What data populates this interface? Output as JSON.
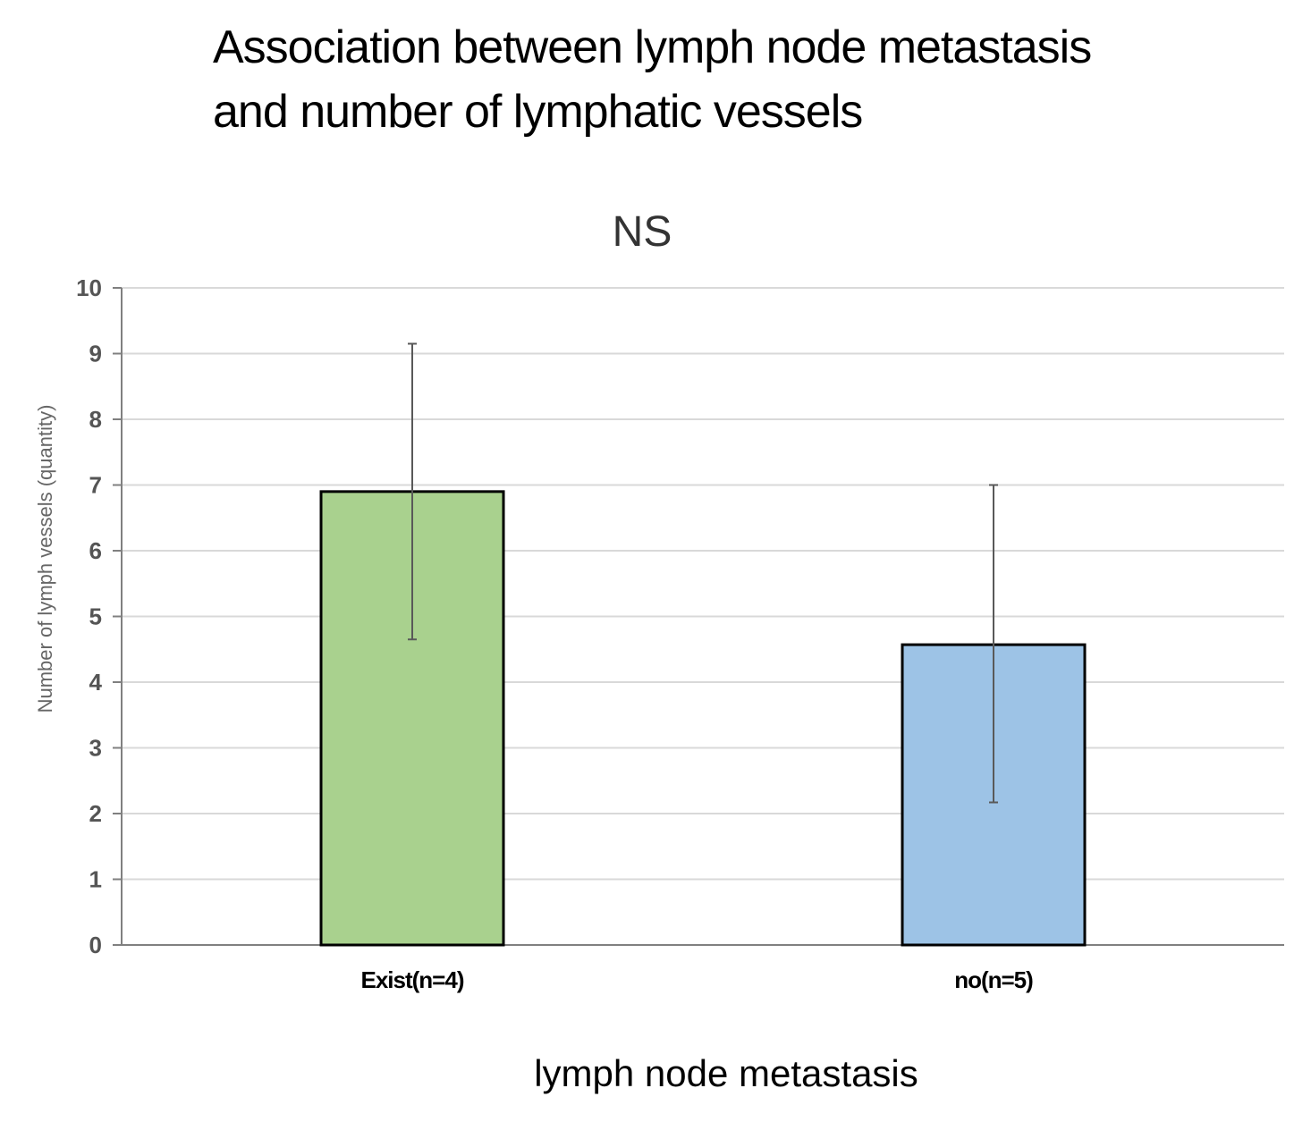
{
  "chart_data": {
    "type": "bar",
    "title_lines": [
      "Association between lymph node metastasis",
      "and number of lymphatic vessels"
    ],
    "annotation": "NS",
    "categories": [
      "Exist(n=4)",
      "no(n=5)"
    ],
    "values": [
      6.9,
      4.57
    ],
    "error_low": [
      4.65,
      2.17
    ],
    "error_high": [
      9.15,
      7.0
    ],
    "bar_colors": [
      "#a9d18e",
      "#9dc3e6"
    ],
    "xlabel": "lymph node metastasis",
    "ylabel": "Number of lymph vessels (quantity)",
    "ylim": [
      0,
      10
    ],
    "yticks": [
      0,
      1,
      2,
      3,
      4,
      5,
      6,
      7,
      8,
      9,
      10
    ],
    "grid": true
  }
}
